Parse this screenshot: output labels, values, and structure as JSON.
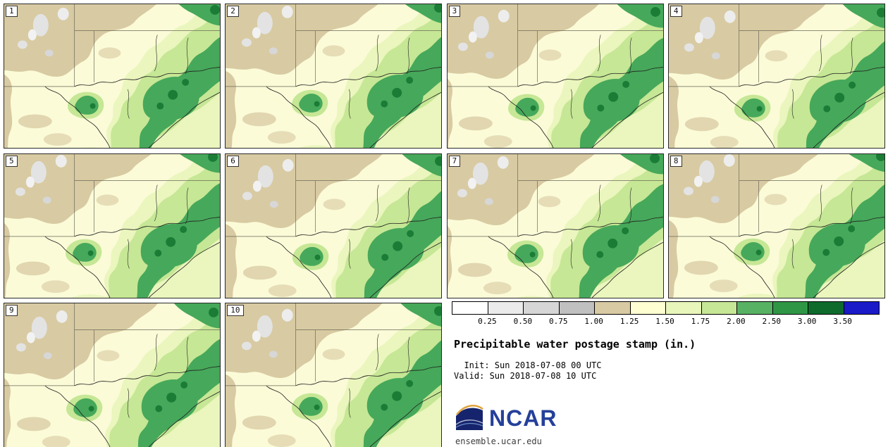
{
  "panels": [
    {
      "label": "1"
    },
    {
      "label": "2"
    },
    {
      "label": "3"
    },
    {
      "label": "4"
    },
    {
      "label": "5"
    },
    {
      "label": "6"
    },
    {
      "label": "7"
    },
    {
      "label": "8"
    },
    {
      "label": "9"
    },
    {
      "label": "10"
    }
  ],
  "legend": {
    "title": "Precipitable water postage stamp (in.)",
    "init_line": "  Init: Sun 2018-07-08 00 UTC",
    "valid_line": "Valid: Sun 2018-07-08 10 UTC",
    "ticks": [
      "0.25",
      "0.50",
      "0.75",
      "1.00",
      "1.25",
      "1.50",
      "1.75",
      "2.00",
      "2.50",
      "3.00",
      "3.50"
    ],
    "segments": [
      "#ffffff",
      "#ebebeb",
      "#d6d6d6",
      "#c0c0c0",
      "#d8caa2",
      "#ffffd2",
      "#e9f6bb",
      "#c6e795",
      "#58b264",
      "#2f9646",
      "#0e6b2c",
      "#1a1ac8"
    ]
  },
  "branding": {
    "logo_text": "NCAR",
    "site": "ensemble.ucar.edu"
  }
}
